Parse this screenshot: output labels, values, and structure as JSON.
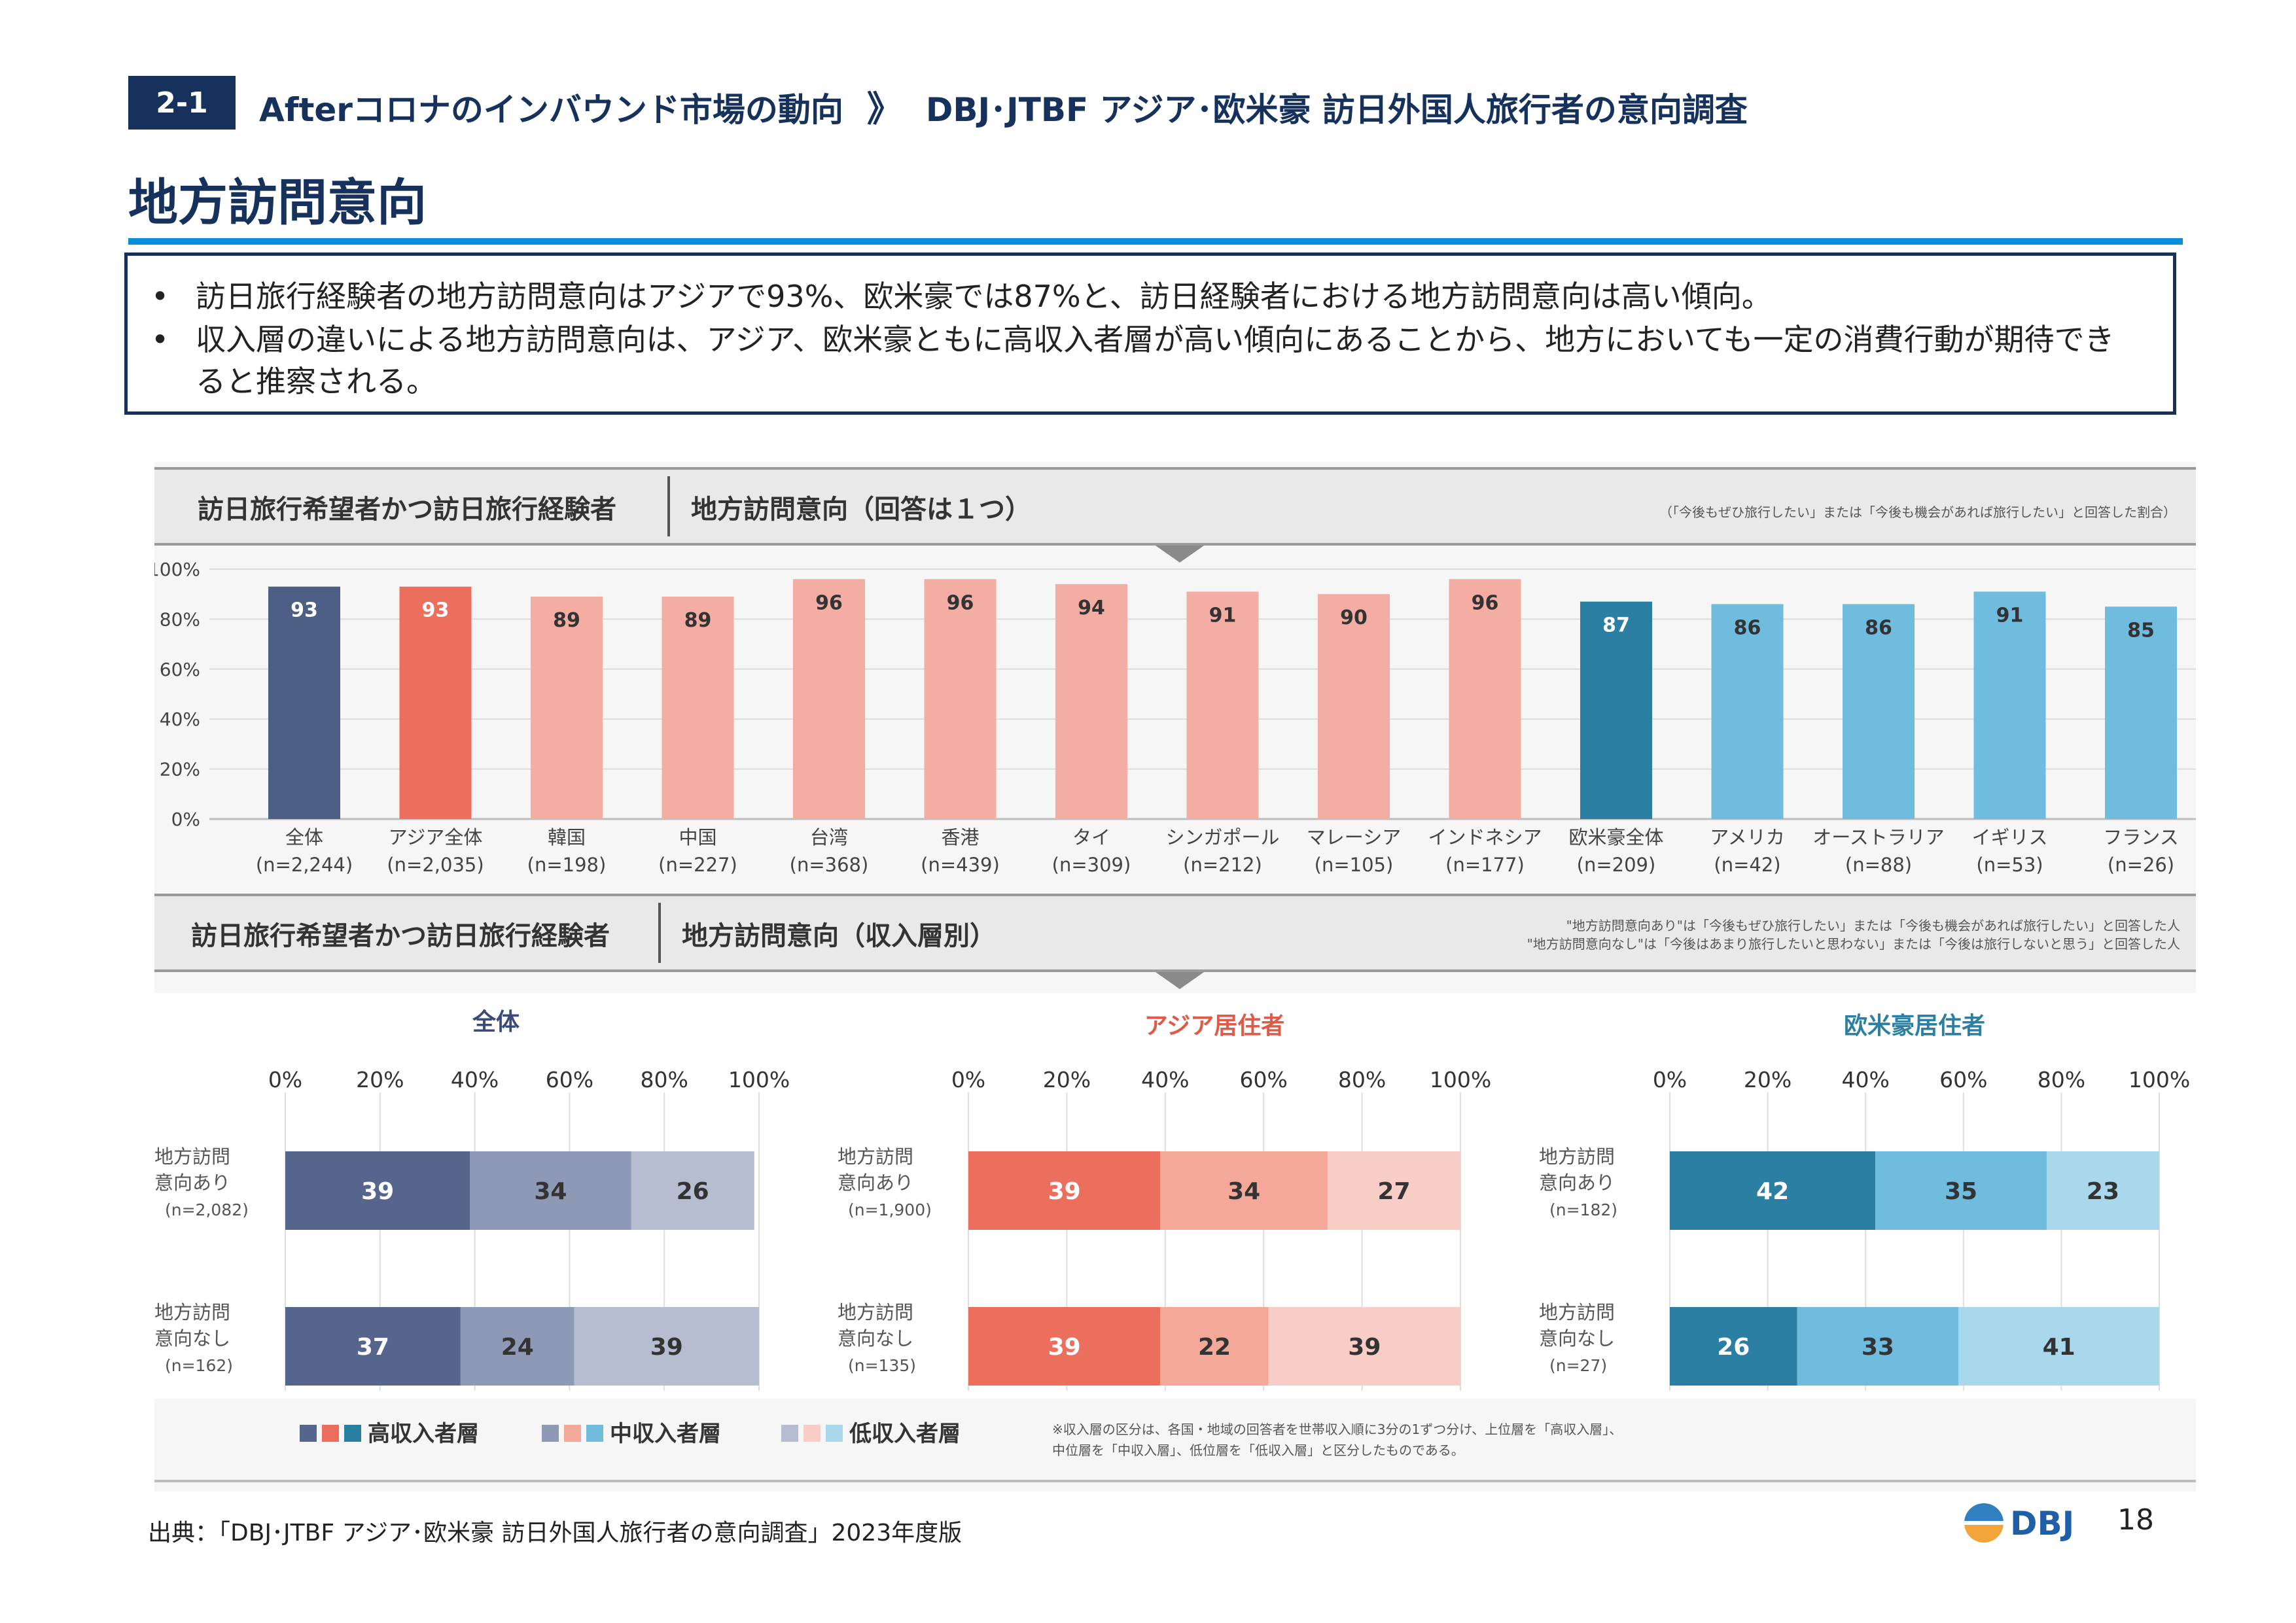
{
  "header": {
    "section_no": "2-1",
    "breadcrumb_1": "Afterコロナのインバウンド市場の動向",
    "breadcrumb_sep": "》",
    "breadcrumb_2": "DBJ･JTBF アジア･欧米豪 訪日外国人旅行者の意向調査"
  },
  "title": "地方訪問意向",
  "summary": [
    "訪日旅行経験者の地方訪問意向はアジアで93%、欧米豪では87%と、訪日経験者における地方訪問意向は高い傾向。",
    "収入層の違いによる地方訪問意向は、アジア、欧米豪ともに高収入者層が高い傾向にあることから、地方においても一定の消費行動が期待できると推察される。"
  ],
  "bullet_symbol": "•",
  "colors": {
    "navy": "#4e5f86",
    "red": "#ec6e5c",
    "light_red": "#f4ada3",
    "teal": "#2a7fa3",
    "light_blue": "#6fbcdf",
    "pale_gray": "#ececec"
  },
  "chart_data": [
    {
      "type": "bar",
      "header_left": "訪日旅行希望者かつ訪日旅行経験者",
      "header_right": "地方訪問意向（回答は１つ）",
      "note": "（「今後もぜひ旅行したい」または「今後も機会があれば旅行したい」と回答した割合）",
      "yticks": [
        "0%",
        "20%",
        "40%",
        "60%",
        "80%",
        "100%"
      ],
      "ylim": [
        0,
        100
      ],
      "categories": [
        "全体",
        "アジア全体",
        "韓国",
        "中国",
        "台湾",
        "香港",
        "タイ",
        "シンガポール",
        "マレーシア",
        "インドネシア",
        "欧米豪全体",
        "アメリカ",
        "オーストラリア",
        "イギリス",
        "フランス"
      ],
      "sample_sizes": [
        "(n=2,244)",
        "(n=2,035)",
        "(n=198)",
        "(n=227)",
        "(n=368)",
        "(n=439)",
        "(n=309)",
        "(n=212)",
        "(n=105)",
        "(n=177)",
        "(n=209)",
        "(n=42)",
        "(n=88)",
        "(n=53)",
        "(n=26)"
      ],
      "values": [
        93,
        93,
        89,
        89,
        96,
        96,
        94,
        91,
        90,
        96,
        87,
        86,
        86,
        91,
        85
      ],
      "bar_colors": [
        "#4e5f86",
        "#ec6e5c",
        "#f4ada3",
        "#f4ada3",
        "#f4ada3",
        "#f4ada3",
        "#f4ada3",
        "#f4ada3",
        "#f4ada3",
        "#f4ada3",
        "#2a7fa3",
        "#6fbcdf",
        "#6fbcdf",
        "#6fbcdf",
        "#6fbcdf"
      ]
    },
    {
      "type": "bar",
      "orientation": "horizontal-stacked",
      "header_left": "訪日旅行希望者かつ訪日旅行経験者",
      "header_right": "地方訪問意向（収入層別）",
      "note_1": "\"地方訪問意向あり\"は「今後もぜひ旅行したい」または「今後も機会があれば旅行したい」と回答した人",
      "note_2": "\"地方訪問意向なし\"は「今後はあまり旅行したいと思わない」または「今後は旅行しないと思う」と回答した人",
      "xticks": [
        "0%",
        "20%",
        "40%",
        "60%",
        "80%",
        "100%"
      ],
      "xlim": [
        0,
        100
      ],
      "legend": [
        "高収入者層",
        "中収入者層",
        "低収入者層"
      ],
      "footnote_1": "※収入層の区分は、各国・地域の回答者を世帯収入順に3分の1ずつ分け、上位層を「高収入層」、",
      "footnote_2": "中位層を「中収入層」、低位層を「低収入層」と区分したものである。",
      "panels": [
        {
          "title": "全体",
          "title_color": "#3b4a78",
          "colors": [
            "#56658c",
            "#8e99b5",
            "#b6bdd1"
          ],
          "rows": [
            {
              "label_1": "地方訪問",
              "label_2": "意向あり",
              "n": "(n=2,082)",
              "values": [
                39,
                34,
                26
              ]
            },
            {
              "label_1": "地方訪問",
              "label_2": "意向なし",
              "n": "(n=162)",
              "values": [
                37,
                24,
                39
              ]
            }
          ]
        },
        {
          "title": "アジア居住者",
          "title_color": "#e05a48",
          "colors": [
            "#ec6e5c",
            "#f3a899",
            "#f8cdc6"
          ],
          "rows": [
            {
              "label_1": "地方訪問",
              "label_2": "意向あり",
              "n": "(n=1,900)",
              "values": [
                39,
                34,
                27
              ]
            },
            {
              "label_1": "地方訪問",
              "label_2": "意向なし",
              "n": "(n=135)",
              "values": [
                39,
                22,
                39
              ]
            }
          ]
        },
        {
          "title": "欧米豪居住者",
          "title_color": "#2a7fa3",
          "colors": [
            "#2a7fa3",
            "#6fbcdf",
            "#a9d7ec"
          ],
          "rows": [
            {
              "label_1": "地方訪問",
              "label_2": "意向あり",
              "n": "(n=182)",
              "values": [
                42,
                35,
                23
              ]
            },
            {
              "label_1": "地方訪問",
              "label_2": "意向なし",
              "n": "(n=27)",
              "values": [
                26,
                33,
                41
              ]
            }
          ]
        }
      ]
    }
  ],
  "footer": {
    "source": "出典：「DBJ･JTBF アジア･欧米豪 訪日外国人旅行者の意向調査」2023年度版",
    "logo_text": "DBJ",
    "page_number": "18"
  }
}
